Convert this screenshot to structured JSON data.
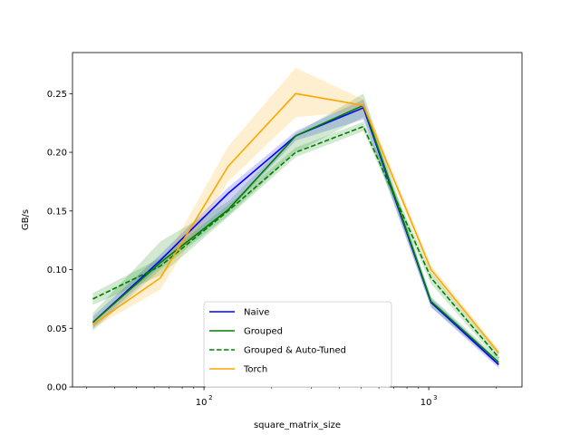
{
  "chart_data": {
    "type": "line",
    "title": "",
    "xlabel": "square_matrix_size",
    "ylabel": "GB/s",
    "xscale": "log",
    "xlim": [
      26,
      2600
    ],
    "ylim": [
      0,
      0.285
    ],
    "x": [
      32,
      64,
      128,
      256,
      512,
      1024,
      2048
    ],
    "x_ticks": [
      {
        "value": 100,
        "base": "10",
        "exp": "2"
      },
      {
        "value": 1000,
        "base": "10",
        "exp": "3"
      }
    ],
    "y_ticks": [
      0.0,
      0.05,
      0.1,
      0.15,
      0.2,
      0.25
    ],
    "y_tick_labels": [
      "0.00",
      "0.05",
      "0.10",
      "0.15",
      "0.20",
      "0.25"
    ],
    "grid": false,
    "legend_position": "lower-center",
    "series": [
      {
        "name": "Naive",
        "color": "#0000ff",
        "dash": "solid",
        "values": [
          0.055,
          0.108,
          0.165,
          0.214,
          0.238,
          0.072,
          0.019
        ],
        "lower": [
          0.05,
          0.103,
          0.15,
          0.21,
          0.228,
          0.068,
          0.016
        ],
        "upper": [
          0.06,
          0.113,
          0.17,
          0.218,
          0.245,
          0.076,
          0.022
        ]
      },
      {
        "name": "Grouped",
        "color": "#008000",
        "dash": "solid",
        "values": [
          0.055,
          0.106,
          0.151,
          0.214,
          0.24,
          0.073,
          0.021
        ],
        "lower": [
          0.048,
          0.1,
          0.146,
          0.2,
          0.23,
          0.068,
          0.018
        ],
        "upper": [
          0.063,
          0.124,
          0.158,
          0.216,
          0.25,
          0.077,
          0.024
        ]
      },
      {
        "name": "Grouped & Auto-Tuned",
        "color": "#008000",
        "dash": "dashed",
        "values": [
          0.075,
          0.103,
          0.15,
          0.2,
          0.222,
          0.093,
          0.025
        ],
        "lower": [
          0.07,
          0.095,
          0.145,
          0.196,
          0.218,
          0.088,
          0.022
        ],
        "upper": [
          0.08,
          0.11,
          0.155,
          0.204,
          0.226,
          0.098,
          0.028
        ]
      },
      {
        "name": "Torch",
        "color": "#ffa500",
        "dash": "solid",
        "values": [
          0.053,
          0.093,
          0.188,
          0.25,
          0.24,
          0.1,
          0.029
        ],
        "lower": [
          0.05,
          0.083,
          0.175,
          0.23,
          0.235,
          0.096,
          0.027
        ],
        "upper": [
          0.057,
          0.102,
          0.205,
          0.272,
          0.245,
          0.104,
          0.032
        ]
      }
    ]
  }
}
